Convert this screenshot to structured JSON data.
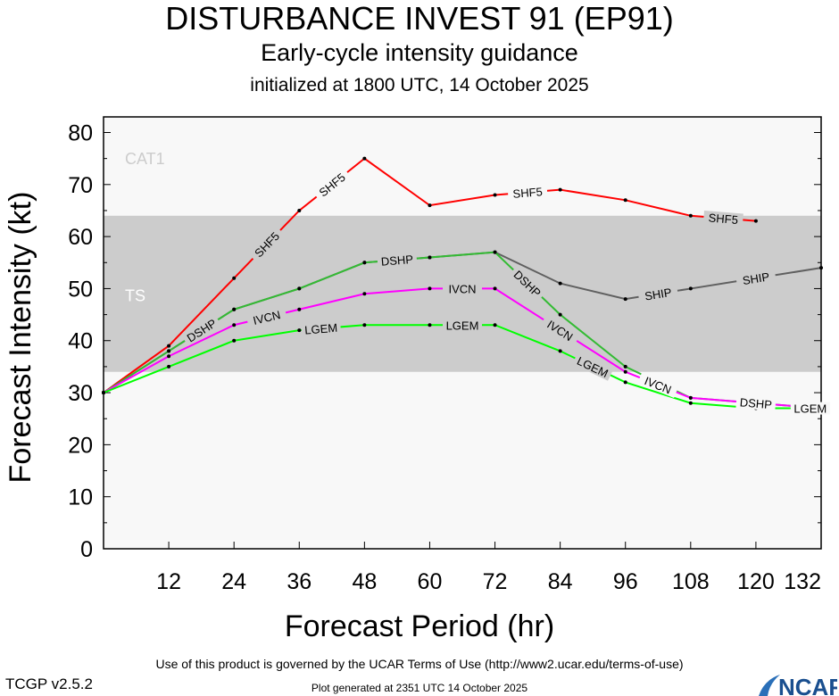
{
  "header": {
    "title": "DISTURBANCE INVEST 91 (EP91)",
    "subtitle": "Early-cycle intensity guidance",
    "init": "initialized at 1800 UTC, 14 October 2025"
  },
  "footer": {
    "terms": "Use of this product is governed by the UCAR Terms of Use (http://www2.ucar.edu/terms-of-use)",
    "generated": "Plot generated at 2351 UTC   14 October 2025",
    "version": "TCGP v2.5.2",
    "logo": "NCAR"
  },
  "chart_data": {
    "type": "line",
    "xlabel": "Forecast Period (hr)",
    "ylabel": "Forecast Intensity (kt)",
    "xlim": [
      0,
      132
    ],
    "ylim": [
      0,
      83
    ],
    "xticks": [
      12,
      24,
      36,
      48,
      60,
      72,
      84,
      96,
      108,
      120,
      132
    ],
    "yticks": [
      0,
      10,
      20,
      30,
      40,
      50,
      60,
      70,
      80
    ],
    "bands": [
      {
        "label": "TS",
        "range": [
          34,
          64
        ],
        "color": "#cccccc"
      },
      {
        "label": "CAT1",
        "range": [
          64,
          83
        ],
        "color": "#f8f8f8"
      }
    ],
    "x": [
      0,
      12,
      24,
      36,
      48,
      60,
      72,
      84,
      96,
      108,
      120,
      132
    ],
    "series": [
      {
        "name": "SHF5",
        "color": "#ff0000",
        "values": [
          30,
          39,
          52,
          65,
          75,
          66,
          68,
          69,
          67,
          64,
          63,
          null
        ]
      },
      {
        "name": "SHIP",
        "color": "#606060",
        "values": [
          30,
          38,
          46,
          50,
          55,
          56,
          57,
          51,
          48,
          50,
          52,
          54
        ]
      },
      {
        "name": "DSHP",
        "color": "#33bb33",
        "values": [
          30,
          38,
          46,
          50,
          55,
          56,
          57,
          45,
          35,
          29,
          28,
          27
        ]
      },
      {
        "name": "IVCN",
        "color": "#ff00ff",
        "values": [
          30,
          37,
          43,
          46,
          49,
          50,
          50,
          42,
          34,
          29,
          28,
          27
        ]
      },
      {
        "name": "LGEM",
        "color": "#00ff00",
        "values": [
          30,
          35,
          40,
          42,
          43,
          43,
          43,
          38,
          32,
          28,
          27,
          27
        ]
      }
    ]
  }
}
